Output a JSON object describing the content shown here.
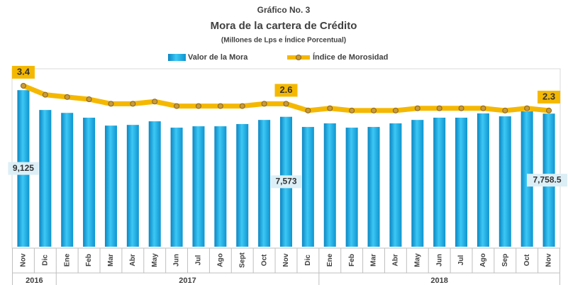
{
  "chart_data": {
    "type": "bar_line",
    "title": "Gráfico No. 3",
    "subtitle": "Mora de la cartera de Crédito",
    "note": "(Millones de Lps e Índice Porcentual)",
    "categories": [
      "Nov",
      "Dic",
      "Ene",
      "Feb",
      "Mar",
      "Abr",
      "May",
      "Jun",
      "Jul",
      "Ago",
      "Sept",
      "Oct",
      "Nov",
      "Dic",
      "Ene",
      "Feb",
      "Mar",
      "Abr",
      "May",
      "Jun",
      "Jul",
      "Ago",
      "Sep",
      "Oct",
      "Nov"
    ],
    "category_years": [
      "2016",
      "2016",
      "2017",
      "2017",
      "2017",
      "2017",
      "2017",
      "2017",
      "2017",
      "2017",
      "2017",
      "2017",
      "2017",
      "2017",
      "2018",
      "2018",
      "2018",
      "2018",
      "2018",
      "2018",
      "2018",
      "2018",
      "2018",
      "2018",
      "2018"
    ],
    "ylim": [
      0,
      10000
    ],
    "y2lim": [
      -3.74,
      3.87
    ],
    "series": [
      {
        "name": "Valor de la Mora",
        "type": "bar",
        "color": "#19b2ea",
        "values": [
          9125,
          7970,
          7800,
          7520,
          7060,
          7100,
          7310,
          6940,
          7020,
          7020,
          7150,
          7390,
          7573,
          6980,
          7190,
          6940,
          6980,
          7190,
          7390,
          7520,
          7520,
          7770,
          7600,
          7890,
          7758.5
        ],
        "value_labels": [
          "9,125",
          null,
          null,
          null,
          null,
          null,
          null,
          null,
          null,
          null,
          null,
          null,
          "7,573",
          null,
          null,
          null,
          null,
          null,
          null,
          null,
          null,
          null,
          null,
          null,
          "7,758.5"
        ]
      },
      {
        "name": "Índice de Morosidad",
        "type": "line",
        "axis": "y2",
        "color": "#f5b800",
        "values": [
          3.4,
          3.0,
          2.9,
          2.8,
          2.6,
          2.6,
          2.7,
          2.5,
          2.5,
          2.5,
          2.5,
          2.6,
          2.6,
          2.3,
          2.4,
          2.3,
          2.3,
          2.3,
          2.4,
          2.4,
          2.4,
          2.4,
          2.3,
          2.4,
          2.3
        ],
        "value_labels": [
          "3.4",
          null,
          null,
          null,
          null,
          null,
          null,
          null,
          null,
          null,
          null,
          null,
          "2.6",
          null,
          null,
          null,
          null,
          null,
          null,
          null,
          null,
          null,
          null,
          null,
          "2.3"
        ]
      }
    ]
  }
}
